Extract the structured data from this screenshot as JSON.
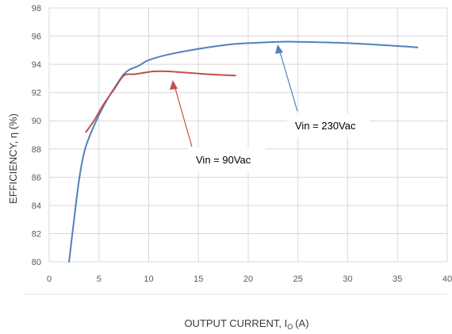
{
  "chart_data": {
    "type": "line",
    "xlabel": "OUTPUT CURRENT, I",
    "xlabel_subscript": "O",
    "xlabel_unit": "(A)",
    "ylabel": "EFFICIENCY, η  (%)",
    "xlim": [
      0,
      40
    ],
    "ylim": [
      80,
      98
    ],
    "xticks": [
      0,
      5,
      10,
      15,
      20,
      25,
      30,
      35,
      40
    ],
    "yticks": [
      80,
      82,
      84,
      86,
      88,
      90,
      92,
      94,
      96,
      98
    ],
    "grid": true,
    "series": [
      {
        "name": "Vin = 230Vac",
        "color": "#4f81bd",
        "x": [
          2.0,
          2.5,
          3.0,
          3.5,
          4.0,
          5.0,
          6.0,
          7.0,
          7.5,
          8.0,
          9.0,
          10.0,
          12.0,
          15.0,
          18.0,
          20.0,
          23.0,
          25.0,
          30.0,
          35.0,
          37.0
        ],
        "y": [
          80.0,
          83.0,
          85.8,
          87.7,
          88.8,
          90.4,
          91.7,
          92.8,
          93.3,
          93.6,
          93.9,
          94.3,
          94.7,
          95.1,
          95.4,
          95.5,
          95.6,
          95.6,
          95.5,
          95.3,
          95.2
        ]
      },
      {
        "name": "Vin = 90Vac",
        "color": "#c0504d",
        "x": [
          3.7,
          4.5,
          5.5,
          6.5,
          7.5,
          8.5,
          9.5,
          10.5,
          12.0,
          14.0,
          16.0,
          18.7
        ],
        "y": [
          89.2,
          90.0,
          91.2,
          92.2,
          93.2,
          93.3,
          93.4,
          93.5,
          93.5,
          93.4,
          93.3,
          93.2
        ]
      }
    ],
    "annotations": [
      {
        "text": "Vin = 230Vac",
        "series": 0,
        "arrow_to": [
          23.3,
          95.6
        ]
      },
      {
        "text": "Vin = 90Vac",
        "series": 1,
        "arrow_to": [
          12.5,
          93.4
        ]
      }
    ]
  }
}
